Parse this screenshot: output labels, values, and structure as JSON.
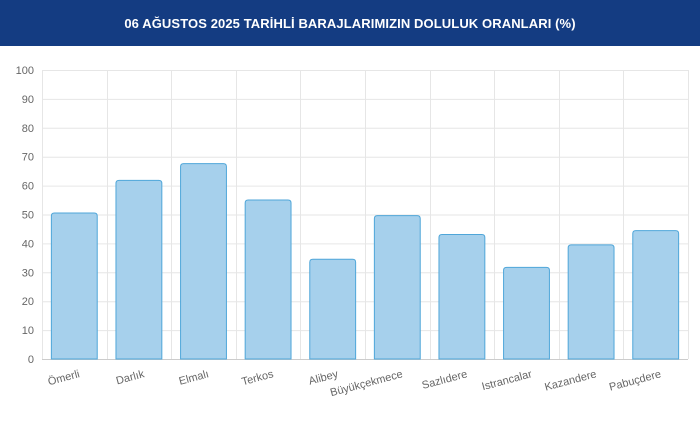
{
  "header": {
    "title": "06 AĞUSTOS 2025 TARİHLİ BARAJLARIMIZIN DOLULUK ORANLARI (%)"
  },
  "colors": {
    "header_bg": "#143C82",
    "bar_fill": "#A6D0EC",
    "bar_stroke": "#4FA6D9",
    "grid": "#E6E6E6",
    "axis": "#CCCCCC",
    "text": "#666666"
  },
  "chart_data": {
    "type": "bar",
    "title": "06 AĞUSTOS 2025 TARİHLİ BARAJLARIMIZIN DOLULUK ORANLARI (%)",
    "categories": [
      "Ömerli",
      "Darlık",
      "Elmalı",
      "Terkos",
      "Alibey",
      "Büyükçekmece",
      "Sazlıdere",
      "Istrancalar",
      "Kazandere",
      "Pabuçdere"
    ],
    "values": [
      50.5,
      61.8,
      67.6,
      55.0,
      34.5,
      49.6,
      43.1,
      31.7,
      39.5,
      44.4
    ],
    "ylim": [
      0,
      100
    ],
    "yticks": [
      0,
      10,
      20,
      30,
      40,
      50,
      60,
      70,
      80,
      90,
      100
    ],
    "grid": true,
    "legend": "none"
  }
}
